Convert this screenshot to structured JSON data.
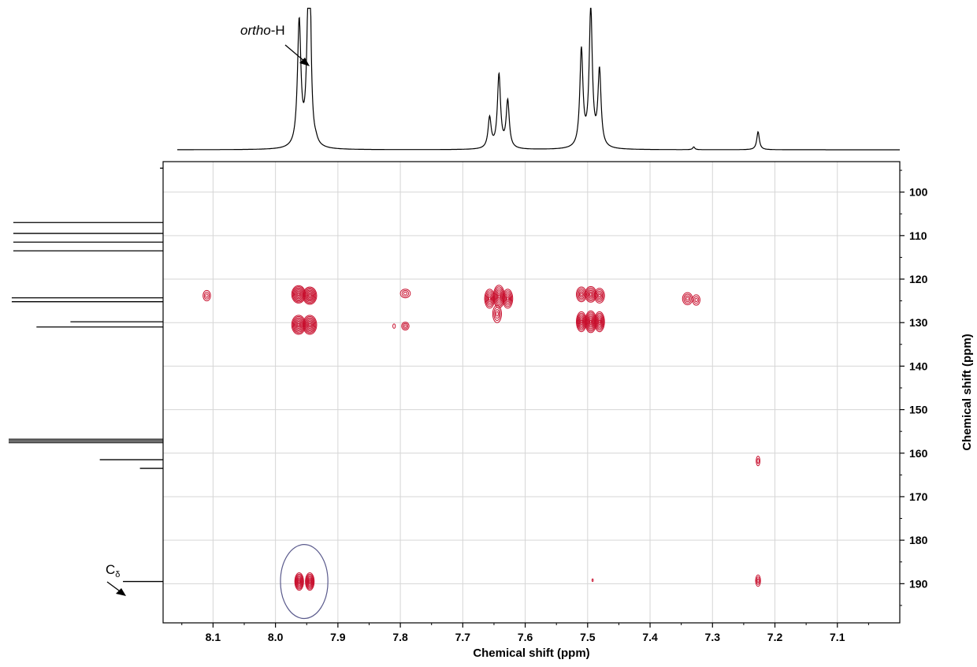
{
  "chart_data": {
    "type": "heatmap",
    "subtype": "2D NMR correlation contour plot with 1D projections",
    "x_axis": {
      "label": "Chemical shift (ppm)",
      "range": [
        8.18,
        7.0
      ],
      "reversed": true,
      "ticks": [
        8.1,
        8.0,
        7.9,
        7.8,
        7.7,
        7.6,
        7.5,
        7.4,
        7.3,
        7.2,
        7.1
      ],
      "tick_labels": [
        "8.1",
        "8.0",
        "7.9",
        "7.8",
        "7.7",
        "7.6",
        "7.5",
        "7.4",
        "7.3",
        "7.2",
        "7.1"
      ]
    },
    "y_axis": {
      "label": "Chemical shift (ppm)",
      "range": [
        93,
        199
      ],
      "reversed": true,
      "position": "right",
      "ticks": [
        100,
        110,
        120,
        130,
        140,
        150,
        160,
        170,
        180,
        190
      ],
      "tick_labels": [
        "100",
        "110",
        "120",
        "130",
        "140",
        "150",
        "160",
        "170",
        "180",
        "190"
      ]
    },
    "grid": true,
    "contour_color": "#c8102e",
    "top_projection": {
      "peaks": [
        {
          "x": 7.962,
          "h": 0.9,
          "w": 0.0033
        },
        {
          "x": 7.947,
          "h": 1.0,
          "w": 0.0033
        },
        {
          "x": 7.945,
          "h": 0.8,
          "w": 0.002
        },
        {
          "x": 7.935,
          "h": 0.02,
          "w": 0.003
        },
        {
          "x": 7.657,
          "h": 0.22,
          "w": 0.003
        },
        {
          "x": 7.642,
          "h": 0.53,
          "w": 0.003
        },
        {
          "x": 7.628,
          "h": 0.34,
          "w": 0.003
        },
        {
          "x": 7.51,
          "h": 0.7,
          "w": 0.003
        },
        {
          "x": 7.495,
          "h": 1.0,
          "w": 0.003
        },
        {
          "x": 7.481,
          "h": 0.55,
          "w": 0.003
        },
        {
          "x": 7.33,
          "h": 0.02,
          "w": 0.002
        },
        {
          "x": 7.227,
          "h": 0.13,
          "w": 0.0025
        }
      ]
    },
    "left_projection": {
      "peaks": [
        {
          "y": 94.5,
          "h": 0.02
        },
        {
          "y": 107.0,
          "h": 0.97
        },
        {
          "y": 109.5,
          "h": 0.97
        },
        {
          "y": 111.5,
          "h": 0.97
        },
        {
          "y": 113.5,
          "h": 0.97
        },
        {
          "y": 124.3,
          "h": 0.98
        },
        {
          "y": 125.2,
          "h": 0.98
        },
        {
          "y": 129.8,
          "h": 0.6
        },
        {
          "y": 131.0,
          "h": 0.82
        },
        {
          "y": 156.8,
          "h": 1.0
        },
        {
          "y": 157.2,
          "h": 1.0
        },
        {
          "y": 157.6,
          "h": 1.0
        },
        {
          "y": 161.5,
          "h": 0.41
        },
        {
          "y": 163.5,
          "h": 0.15
        },
        {
          "y": 189.5,
          "h": 0.26
        }
      ]
    },
    "cross_peaks": [
      {
        "x": 8.11,
        "y": 123.8,
        "rx": 0.006,
        "ry": 1.2,
        "levels": 3
      },
      {
        "x": 7.963,
        "y": 123.5,
        "rx": 0.011,
        "ry": 2.0,
        "levels": 8
      },
      {
        "x": 7.945,
        "y": 123.8,
        "rx": 0.011,
        "ry": 2.0,
        "levels": 8
      },
      {
        "x": 7.963,
        "y": 130.5,
        "rx": 0.011,
        "ry": 2.2,
        "levels": 8
      },
      {
        "x": 7.945,
        "y": 130.5,
        "rx": 0.011,
        "ry": 2.2,
        "levels": 8
      },
      {
        "x": 7.792,
        "y": 123.3,
        "rx": 0.008,
        "ry": 1.0,
        "levels": 3
      },
      {
        "x": 7.792,
        "y": 130.8,
        "rx": 0.006,
        "ry": 0.9,
        "levels": 3
      },
      {
        "x": 7.81,
        "y": 130.8,
        "rx": 0.002,
        "ry": 0.5,
        "levels": 1
      },
      {
        "x": 7.657,
        "y": 124.5,
        "rx": 0.008,
        "ry": 2.2,
        "levels": 6
      },
      {
        "x": 7.642,
        "y": 124.0,
        "rx": 0.009,
        "ry": 2.6,
        "levels": 7
      },
      {
        "x": 7.628,
        "y": 124.5,
        "rx": 0.008,
        "ry": 2.2,
        "levels": 6
      },
      {
        "x": 7.645,
        "y": 128.0,
        "rx": 0.007,
        "ry": 2.0,
        "levels": 4
      },
      {
        "x": 7.51,
        "y": 123.5,
        "rx": 0.008,
        "ry": 1.7,
        "levels": 5
      },
      {
        "x": 7.495,
        "y": 123.5,
        "rx": 0.009,
        "ry": 1.8,
        "levels": 6
      },
      {
        "x": 7.481,
        "y": 123.8,
        "rx": 0.008,
        "ry": 1.7,
        "levels": 5
      },
      {
        "x": 7.51,
        "y": 129.8,
        "rx": 0.008,
        "ry": 2.3,
        "levels": 7
      },
      {
        "x": 7.495,
        "y": 129.8,
        "rx": 0.009,
        "ry": 2.5,
        "levels": 8
      },
      {
        "x": 7.481,
        "y": 129.8,
        "rx": 0.008,
        "ry": 2.3,
        "levels": 7
      },
      {
        "x": 7.34,
        "y": 124.5,
        "rx": 0.008,
        "ry": 1.4,
        "levels": 4
      },
      {
        "x": 7.326,
        "y": 124.8,
        "rx": 0.006,
        "ry": 1.2,
        "levels": 3
      },
      {
        "x": 7.227,
        "y": 161.8,
        "rx": 0.003,
        "ry": 1.1,
        "levels": 2
      },
      {
        "x": 7.227,
        "y": 189.3,
        "rx": 0.004,
        "ry": 1.3,
        "levels": 3
      },
      {
        "x": 7.492,
        "y": 189.2,
        "rx": 0.001,
        "ry": 0.3,
        "levels": 1
      },
      {
        "x": 7.962,
        "y": 189.5,
        "rx": 0.007,
        "ry": 2.0,
        "levels": 7
      },
      {
        "x": 7.945,
        "y": 189.5,
        "rx": 0.007,
        "ry": 2.0,
        "levels": 7
      }
    ],
    "highlight_ellipse": {
      "x": 7.954,
      "y": 189.5,
      "rx": 0.038,
      "ry": 8.5,
      "color": "#5a5a8c"
    },
    "annotations": [
      {
        "target": "top-projection peak 7.96",
        "text_italic": "ortho",
        "text_rest": "-H"
      },
      {
        "target": "left-projection peak 189.5",
        "text_main": "C",
        "text_sub": "δ"
      }
    ]
  }
}
